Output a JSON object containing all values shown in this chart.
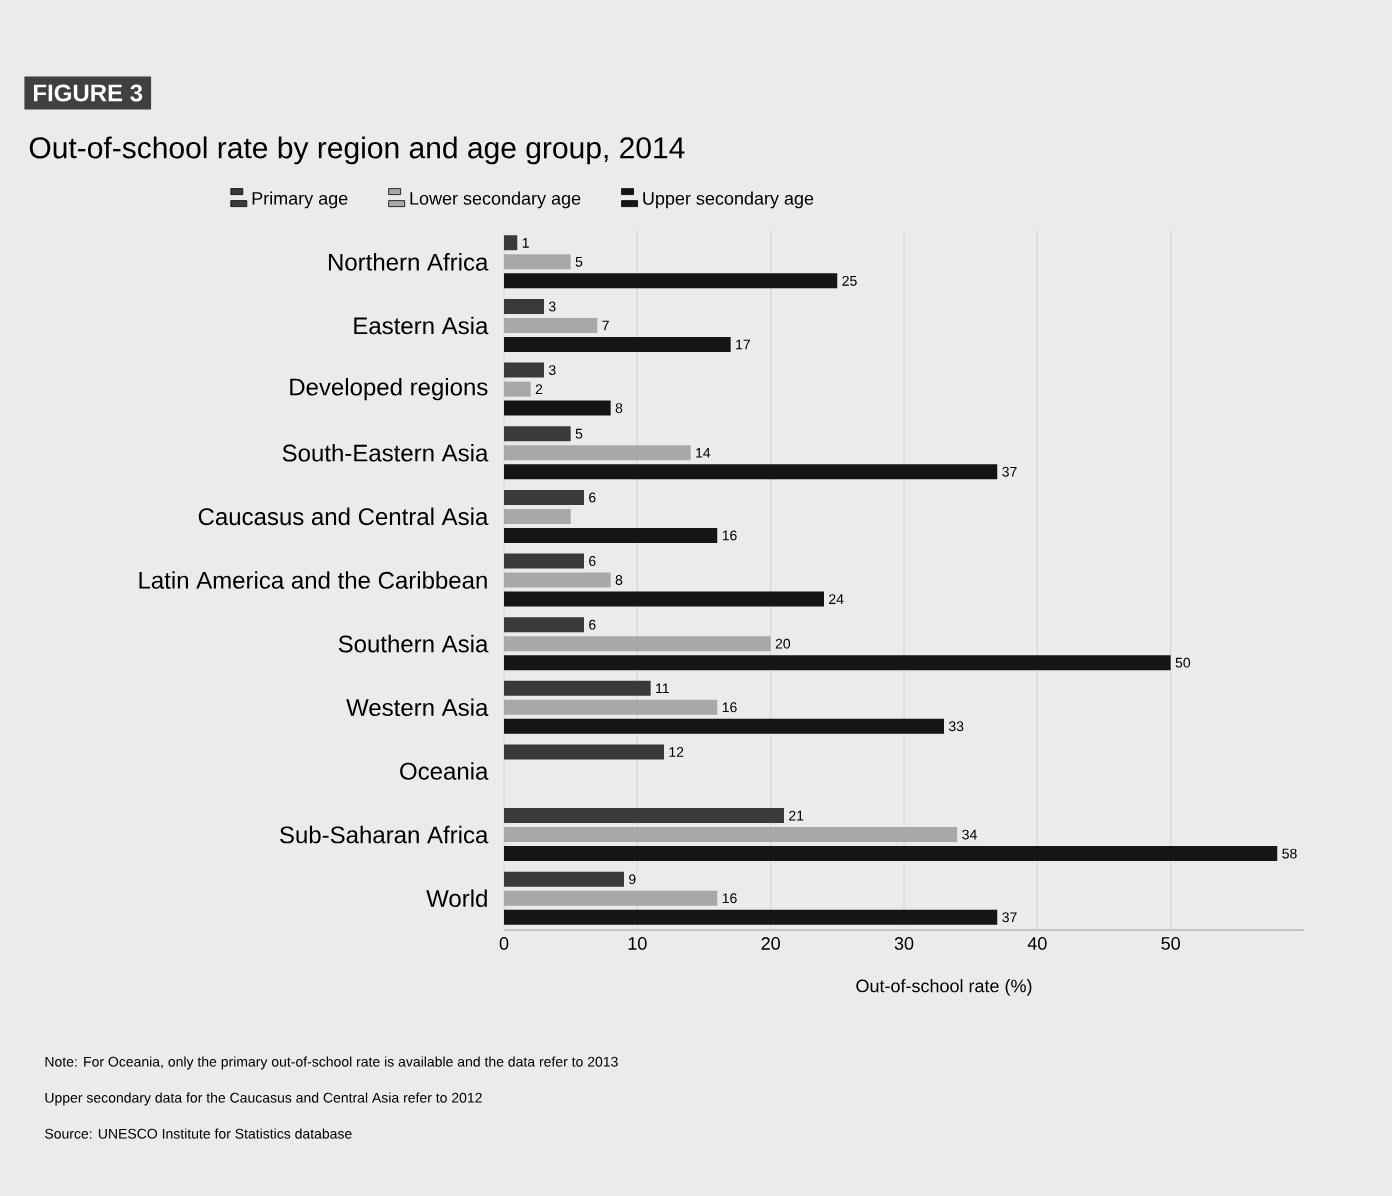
{
  "chart_data": {
    "type": "bar",
    "orientation": "horizontal",
    "title": "Out-of-school rate by region and age group, 2014",
    "xlabel": "Out-of-school rate (%)",
    "categories": [
      "Northern Africa",
      "Eastern Asia",
      "Developed regions",
      "South-Eastern Asia",
      "Caucasus and Central Asia",
      "Latin America and the Caribbean",
      "Southern Asia",
      "Western Asia",
      "Oceania",
      "Sub-Saharan Africa",
      "World"
    ],
    "series": [
      {
        "name": "Primary age",
        "color": "#3a3a3a",
        "values": [
          1,
          3,
          3,
          5,
          6,
          6,
          6,
          11,
          12,
          21,
          9
        ],
        "value_labels": [
          "1",
          "3",
          "3",
          "5",
          "6",
          "6",
          "6",
          "11",
          "12",
          "21",
          "9"
        ]
      },
      {
        "name": "Lower secondary age",
        "color": "#a8a8a8",
        "values": [
          5,
          7,
          2,
          14,
          5,
          8,
          20,
          16,
          null,
          34,
          16
        ],
        "value_labels": [
          "5",
          "7",
          "2",
          "14",
          null,
          "8",
          "20",
          "16",
          null,
          "34",
          "16"
        ]
      },
      {
        "name": "Upper secondary age",
        "color": "#151515",
        "values": [
          25,
          17,
          8,
          37,
          16,
          24,
          50,
          33,
          null,
          58,
          37
        ],
        "value_labels": [
          "25",
          "17",
          "8",
          "37",
          "16",
          "24",
          "50",
          "33",
          null,
          "58",
          "37"
        ]
      }
    ],
    "xlim": [
      0,
      60
    ],
    "xticks": [
      0,
      10,
      20,
      30,
      40,
      50
    ],
    "grid": "x",
    "legend": "top",
    "annotations": [
      "FIGURE 3",
      "Note: For Oceania, only the primary out-of-school rate is available and the data refer to 2013",
      "Upper secondary data for the Caucasus and Central Asia refer to 2012",
      "Source: UNESCO Institute for Statistics database"
    ]
  }
}
